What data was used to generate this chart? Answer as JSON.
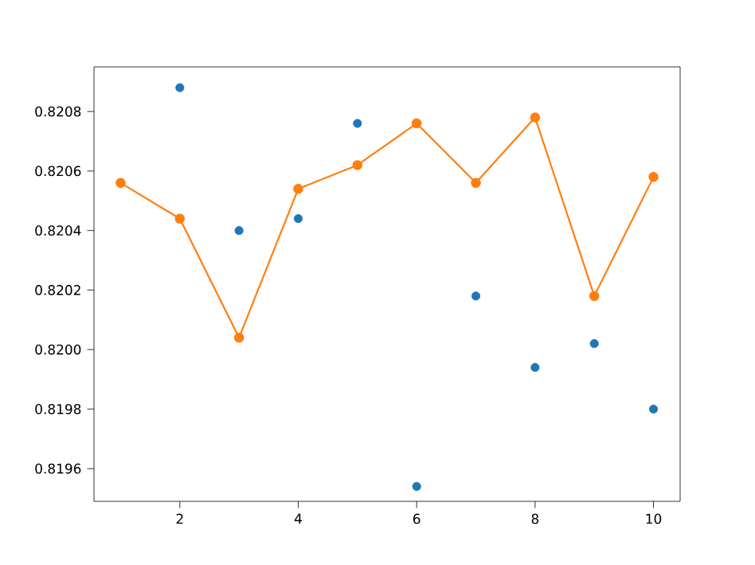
{
  "chart_data": {
    "type": "scatter",
    "xlim": [
      0.55,
      10.45
    ],
    "ylim": [
      0.81949,
      0.82095
    ],
    "xticks": [
      2,
      4,
      6,
      8,
      10
    ],
    "yticks": [
      {
        "value": 0.8196,
        "label": "0.8196"
      },
      {
        "value": 0.8198,
        "label": "0.8198"
      },
      {
        "value": 0.82,
        "label": "0.8200"
      },
      {
        "value": 0.8202,
        "label": "0.8202"
      },
      {
        "value": 0.8204,
        "label": "0.8204"
      },
      {
        "value": 0.8206,
        "label": "0.8206"
      },
      {
        "value": 0.8208,
        "label": "0.8208"
      }
    ],
    "marker": "circle",
    "series": [
      {
        "color": "#1f77b4",
        "x": [
          2,
          3,
          4,
          5,
          6,
          7,
          8,
          9,
          10
        ],
        "values": [
          0.82088,
          0.8204,
          0.82044,
          0.82076,
          0.81954,
          0.82018,
          0.81994,
          0.82002,
          0.8198
        ]
      },
      {
        "type": "line",
        "color": "#ff7f0e",
        "x": [
          1,
          2,
          3,
          4,
          5,
          6,
          7,
          8,
          9,
          10
        ],
        "values": [
          0.82056,
          0.82044,
          0.82004,
          0.82054,
          0.82062,
          0.82076,
          0.82056,
          0.82078,
          0.82018,
          0.82058
        ]
      }
    ]
  }
}
